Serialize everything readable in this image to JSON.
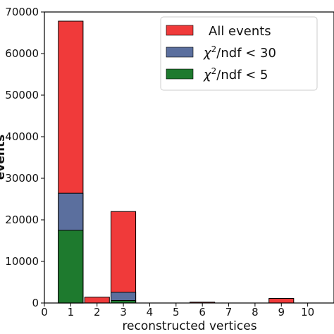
{
  "chart_data": {
    "type": "bar",
    "subtype": "overlaid-histogram",
    "xlabel": "reconstructed vertices",
    "ylabel": "events",
    "xlim": [
      0,
      11
    ],
    "ylim": [
      0,
      70000
    ],
    "x_ticks": [
      "0",
      "1",
      "2",
      "3",
      "4",
      "5",
      "6",
      "7",
      "8",
      "9",
      "10"
    ],
    "y_ticks": [
      "0",
      "10000",
      "20000",
      "30000",
      "40000",
      "50000",
      "60000",
      "70000"
    ],
    "grid": false,
    "legend_position": "top-right",
    "series": [
      {
        "name": "All events",
        "color": "#f03a3a",
        "bars": [
          {
            "x": 1,
            "value": 67800
          },
          {
            "x": 2,
            "value": 1400
          },
          {
            "x": 3,
            "value": 22000
          },
          {
            "x": 6,
            "value": 200
          },
          {
            "x": 9,
            "value": 1100
          }
        ]
      },
      {
        "name": "χ2/ndf < 30",
        "color": "#5b6f9e",
        "bars": [
          {
            "x": 1,
            "value": 26400
          },
          {
            "x": 3,
            "value": 2600
          }
        ]
      },
      {
        "name": "χ2/ndf < 5",
        "color": "#1e7a2e",
        "bars": [
          {
            "x": 1,
            "value": 17500
          },
          {
            "x": 3,
            "value": 600
          }
        ]
      }
    ]
  },
  "legend": {
    "all_events": "All events",
    "chi_prefix": "χ",
    "chi_sup": "2",
    "chi30_suffix": "/ndf < 30",
    "chi5_suffix": "/ndf < 5",
    "colors": {
      "all_events": "#f03a3a",
      "chi30": "#5b6f9e",
      "chi5": "#1e7a2e"
    }
  }
}
